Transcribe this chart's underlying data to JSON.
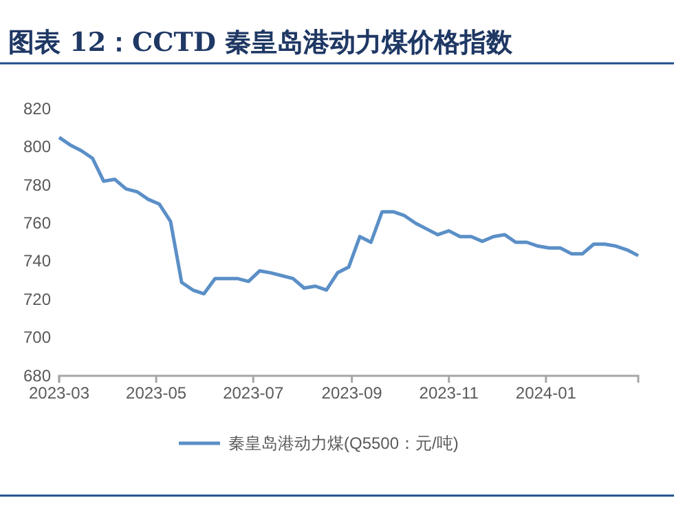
{
  "chart_data": {
    "type": "line",
    "title": "图表 12：CCTD 秦皇岛港动力煤价格指数",
    "x": [
      "2023-03-01",
      "2023-03-08",
      "2023-03-15",
      "2023-03-22",
      "2023-03-29",
      "2023-04-05",
      "2023-04-12",
      "2023-04-19",
      "2023-04-26",
      "2023-05-03",
      "2023-05-10",
      "2023-05-17",
      "2023-05-24",
      "2023-05-31",
      "2023-06-07",
      "2023-06-14",
      "2023-06-21",
      "2023-06-28",
      "2023-07-05",
      "2023-07-12",
      "2023-07-19",
      "2023-07-26",
      "2023-08-02",
      "2023-08-09",
      "2023-08-16",
      "2023-08-23",
      "2023-08-30",
      "2023-09-06",
      "2023-09-13",
      "2023-09-20",
      "2023-09-27",
      "2023-10-04",
      "2023-10-11",
      "2023-10-18",
      "2023-10-25",
      "2023-11-01",
      "2023-11-08",
      "2023-11-15",
      "2023-11-22",
      "2023-11-29",
      "2023-12-06",
      "2023-12-13",
      "2023-12-20",
      "2023-12-27",
      "2024-01-03",
      "2024-01-10",
      "2024-01-17",
      "2024-01-24",
      "2024-01-31",
      "2024-02-07",
      "2024-02-14",
      "2024-02-21",
      "2024-02-28"
    ],
    "series": [
      {
        "name": "秦皇岛港动力煤(Q5500：元/吨)",
        "color": "#5b8fc7",
        "values": [
          805,
          801,
          798,
          794,
          782,
          783,
          778,
          776.5,
          772.5,
          770,
          761,
          729,
          725,
          723,
          731,
          731,
          731,
          729.5,
          735,
          734,
          732.5,
          731,
          726,
          727,
          725,
          734,
          737,
          753,
          750,
          766,
          766,
          764,
          760,
          757,
          754,
          756,
          753,
          753,
          750.5,
          753,
          754,
          750,
          750,
          748,
          747,
          747,
          744,
          744,
          749,
          749,
          748,
          746,
          743
        ]
      }
    ],
    "xlim": [
      "2023-03-01",
      "2024-02-28"
    ],
    "xticks": [
      "2023-03",
      "2023-05",
      "2023-07",
      "2023-09",
      "2023-11",
      "2024-01"
    ],
    "ylim": [
      680,
      820
    ],
    "yticks": [
      680,
      700,
      720,
      740,
      760,
      780,
      800,
      820
    ],
    "grid": false,
    "legend": "bottom",
    "marker": "none",
    "line_style": "solid"
  }
}
